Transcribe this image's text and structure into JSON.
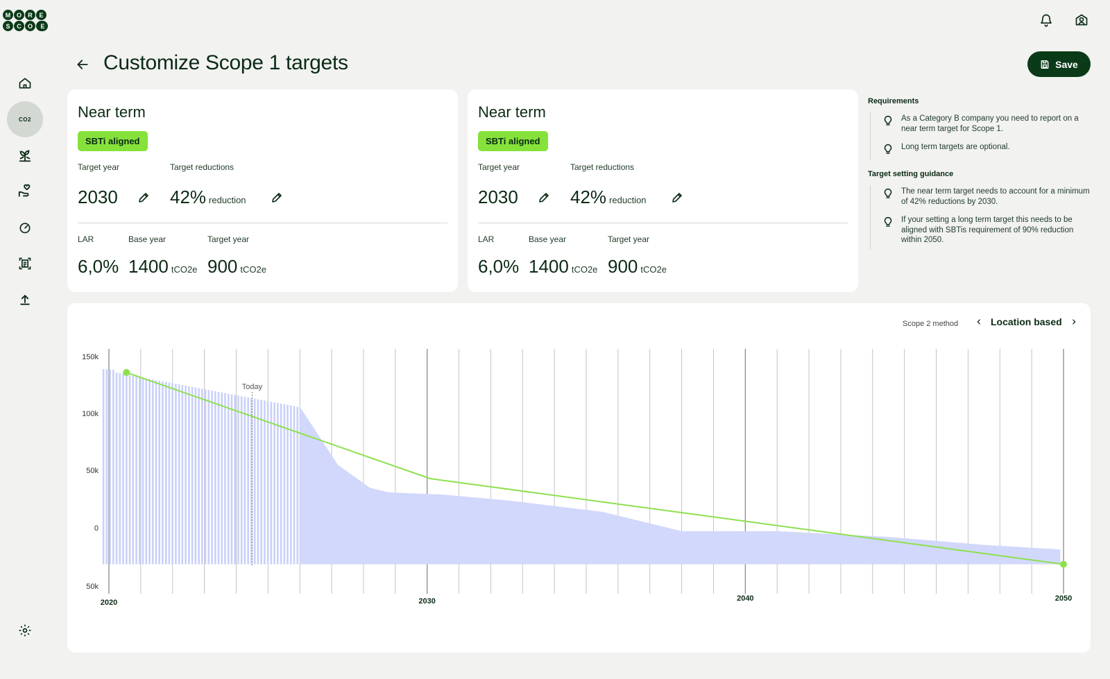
{
  "logo": {
    "letters_top": [
      "M",
      "O",
      "R",
      "E"
    ],
    "letters_bottom": [
      "S",
      "C",
      "O",
      "P",
      "E"
    ]
  },
  "header": {
    "title": "Customize Scope 1 targets",
    "save_label": "Save"
  },
  "sidebar": {
    "items": [
      {
        "icon": "home-icon"
      },
      {
        "icon": "co2-icon",
        "label": "CO2",
        "active": true
      },
      {
        "icon": "plant-icon"
      },
      {
        "icon": "hand-heart-icon"
      },
      {
        "icon": "gauge-icon"
      },
      {
        "icon": "report-icon"
      },
      {
        "icon": "upload-icon"
      }
    ],
    "settings_icon": "gear-icon"
  },
  "cards": [
    {
      "title": "Near term",
      "badge": "SBTi aligned",
      "target_year_label": "Target year",
      "target_year": "2030",
      "target_reductions_label": "Target reductions",
      "reduction_value": "42%",
      "reduction_unit": "reduction",
      "lar_label": "LAR",
      "lar_value": "6,0%",
      "base_year_label": "Base year",
      "base_year_value": "1400",
      "base_year_unit": "tCO2e",
      "target_year2_label": "Target year",
      "target_year2_value": "900",
      "target_year2_unit": "tCO2e"
    },
    {
      "title": "Near term",
      "badge": "SBTi aligned",
      "target_year_label": "Target year",
      "target_year": "2030",
      "target_reductions_label": "Target reductions",
      "reduction_value": "42%",
      "reduction_unit": "reduction",
      "lar_label": "LAR",
      "lar_value": "6,0%",
      "base_year_label": "Base year",
      "base_year_value": "1400",
      "base_year_unit": "tCO2e",
      "target_year2_label": "Target year",
      "target_year2_value": "900",
      "target_year2_unit": "tCO2e"
    }
  ],
  "requirements": {
    "heading": "Requirements",
    "items": [
      "As a Category B company you need to report on a near term target for Scope 1.",
      "Long term targets are optional."
    ]
  },
  "guidance": {
    "heading": "Target setting guidance",
    "items": [
      "The near term target needs to account for a minimum of 42% reductions by 2030.",
      "If your setting a long term target this needs to be aligned with SBTis requirement of 90% reduction within 2050."
    ]
  },
  "scope2": {
    "label": "Scope 2 method",
    "value": "Location based"
  },
  "chart_data": {
    "type": "area",
    "y_tick_labels": [
      "150k",
      "100k",
      "50k",
      "0",
      "50k"
    ],
    "y_tick_values": [
      150,
      100,
      50,
      0,
      -50
    ],
    "x_tick_labels": [
      "2020",
      "2030",
      "2040",
      "2050"
    ],
    "x_tick_values": [
      2020,
      2030,
      2040,
      2050
    ],
    "xlim": [
      2020,
      2050
    ],
    "ylim": [
      -50,
      150
    ],
    "today_label": "Today",
    "today_x": 2024.5,
    "colors": {
      "area": "#d2d8fb",
      "bars": "#c9d0fa",
      "line": "#8ee04e",
      "grid": "#bdbdbd"
    },
    "bars": {
      "x_start": 2019.8,
      "x_end": 2026.0,
      "count": 60,
      "start_value": 138,
      "end_value": 106
    },
    "area": {
      "x": [
        2026.0,
        2027.2,
        2028.2,
        2028.8,
        2030.5,
        2032.5,
        2035.5,
        2038.0,
        2041.0,
        2044.5,
        2047.5,
        2049.9
      ],
      "y": [
        106,
        55,
        35,
        31,
        29,
        24,
        14,
        -3,
        -3,
        -8,
        -15,
        -19
      ]
    },
    "target_line": {
      "x": [
        2020.55,
        2030.1,
        2050
      ],
      "y": [
        136,
        43,
        -32
      ]
    }
  }
}
